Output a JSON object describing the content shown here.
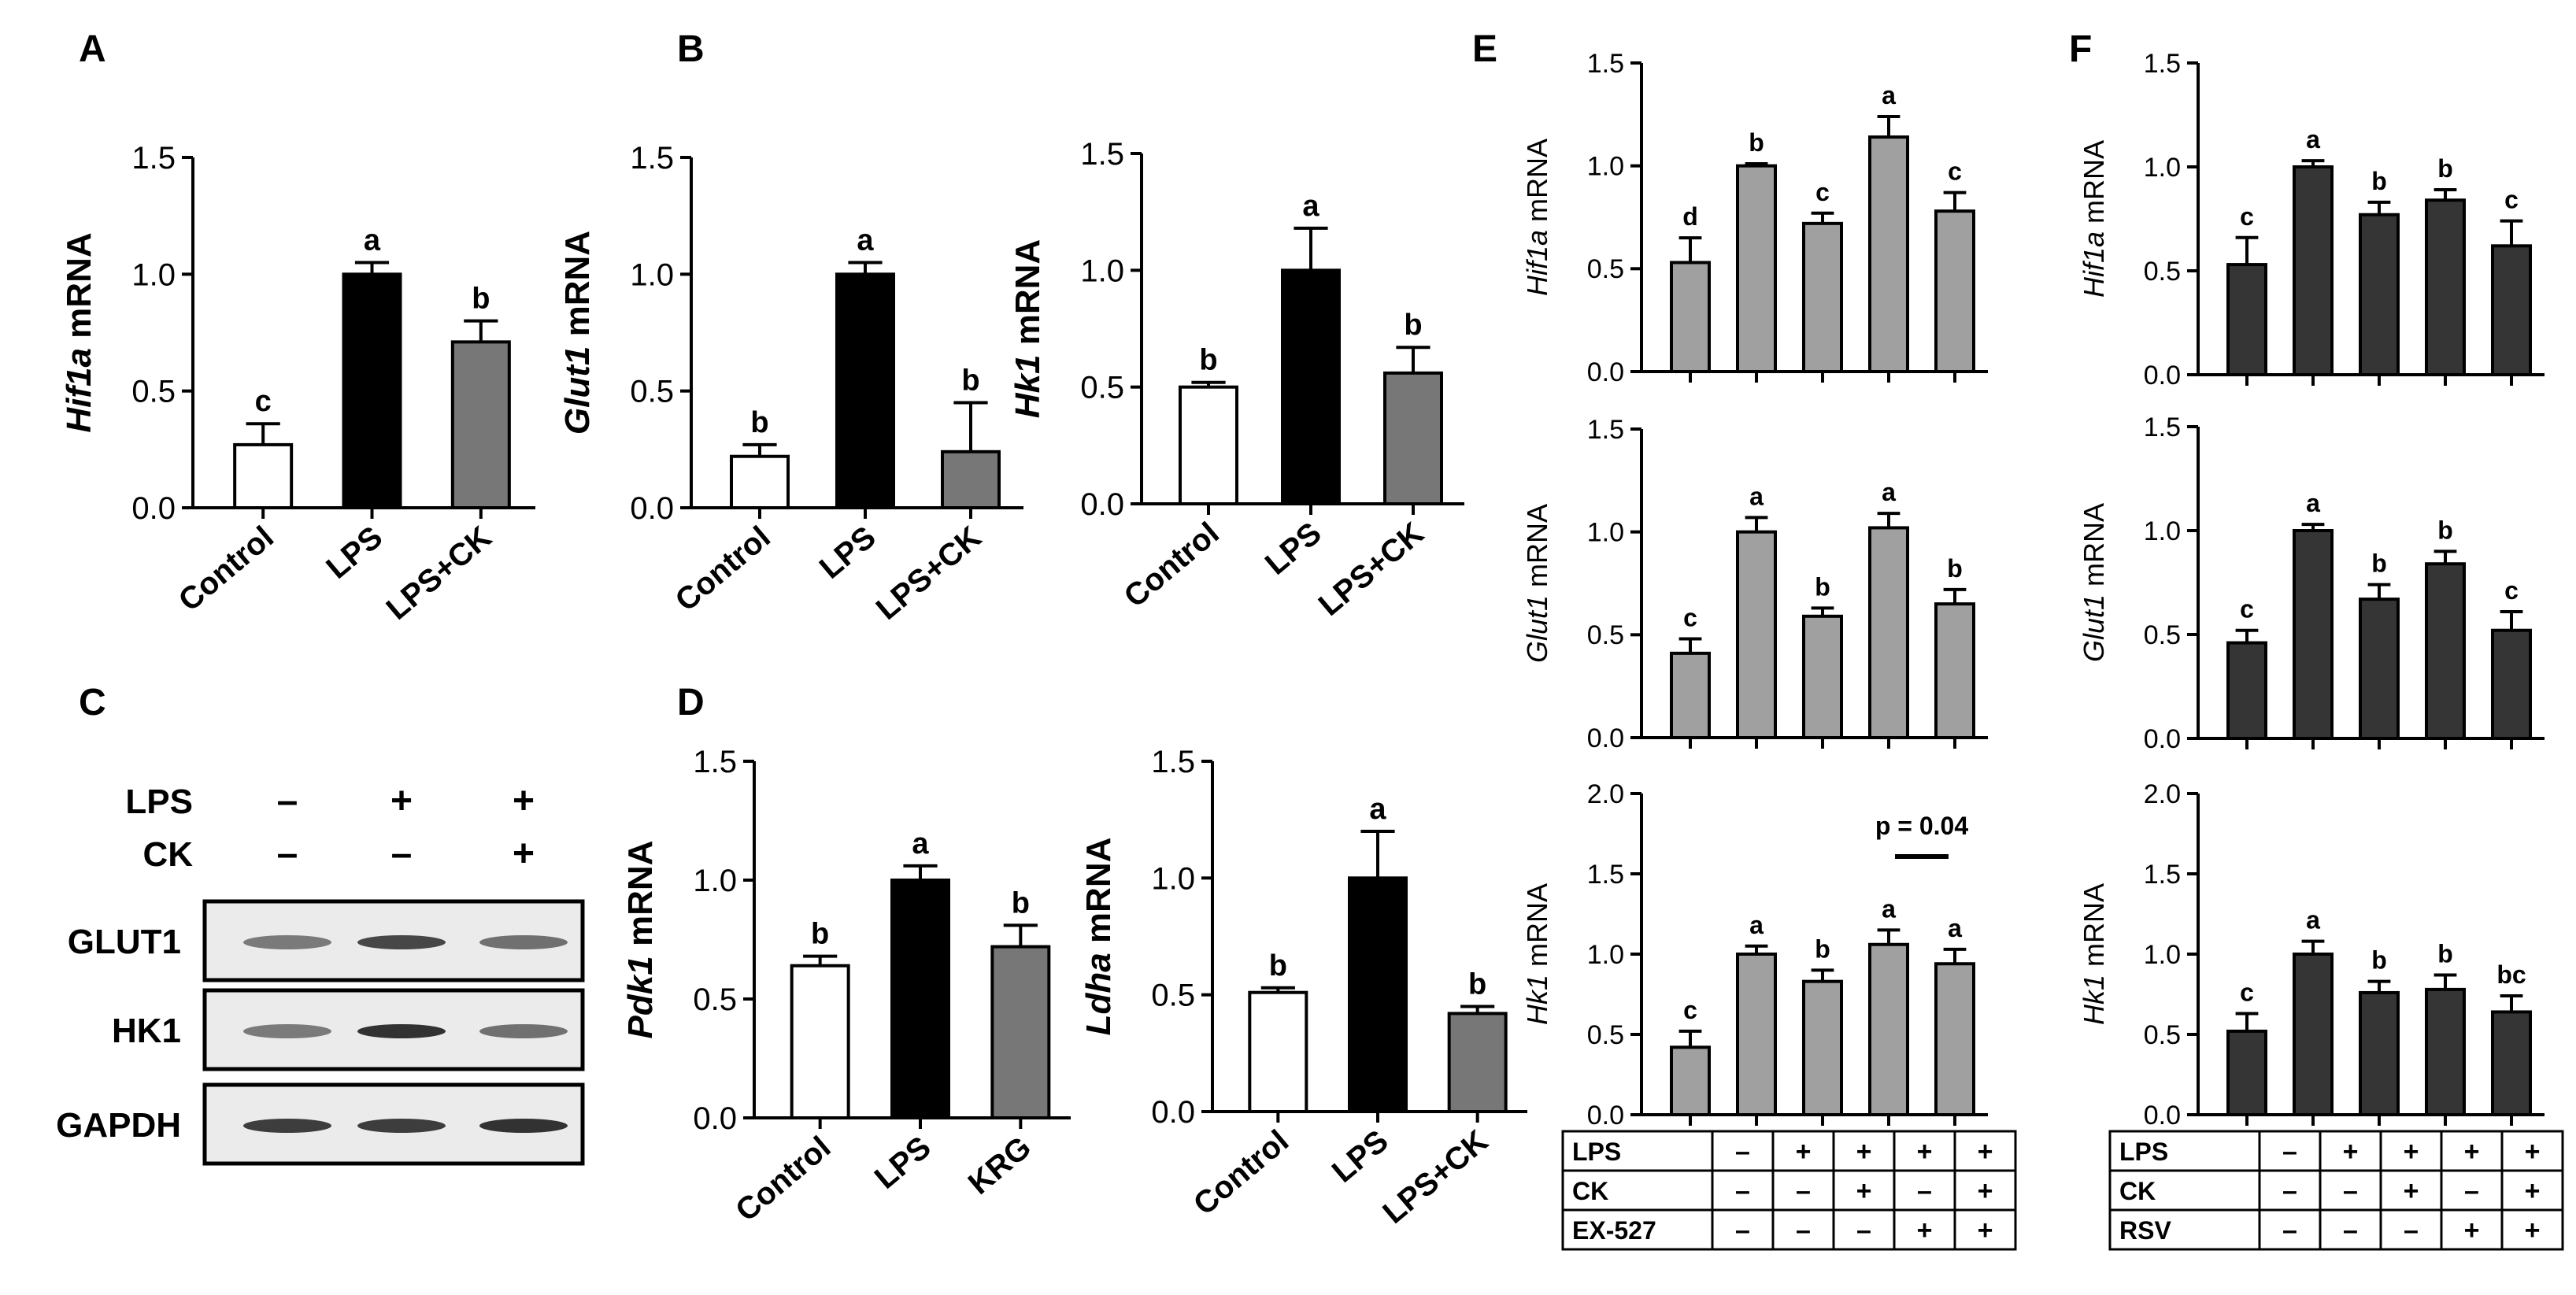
{
  "colors": {
    "white": "#ffffff",
    "black": "#000000",
    "dark_gray": "#777777",
    "light_gray": "#a0a0a0",
    "charcoal": "#353535"
  },
  "panel_letters": {
    "A": "A",
    "B": "B",
    "C": "C",
    "D": "D",
    "E": "E",
    "F": "F"
  },
  "chart_data": [
    {
      "id": "A",
      "type": "bar",
      "ylabel_italic": "Hif1a",
      "ylabel_rest": " mRNA",
      "ylim": [
        0,
        1.5
      ],
      "yticks": [
        "0.0",
        "0.5",
        "1.0",
        "1.5"
      ],
      "categories": [
        "Control",
        "LPS",
        "LPS+CK"
      ],
      "values": [
        0.27,
        1.0,
        0.71
      ],
      "errors": [
        0.09,
        0.05,
        0.09
      ],
      "letters": [
        "c",
        "a",
        "b"
      ],
      "fills": [
        "white",
        "black",
        "dark_gray"
      ]
    },
    {
      "id": "B1",
      "type": "bar",
      "ylabel_italic": "Glut1",
      "ylabel_rest": " mRNA",
      "ylim": [
        0,
        1.5
      ],
      "yticks": [
        "0.0",
        "0.5",
        "1.0",
        "1.5"
      ],
      "categories": [
        "Control",
        "LPS",
        "LPS+CK"
      ],
      "values": [
        0.22,
        1.0,
        0.24
      ],
      "errors": [
        0.05,
        0.05,
        0.21
      ],
      "letters": [
        "b",
        "a",
        "b"
      ],
      "fills": [
        "white",
        "black",
        "dark_gray"
      ]
    },
    {
      "id": "B2",
      "type": "bar",
      "ylabel_italic": "Hk1",
      "ylabel_rest": " mRNA",
      "ylim": [
        0,
        1.5
      ],
      "yticks": [
        "0.0",
        "0.5",
        "1.0",
        "1.5"
      ],
      "categories": [
        "Control",
        "LPS",
        "LPS+CK"
      ],
      "values": [
        0.5,
        1.0,
        0.56
      ],
      "errors": [
        0.02,
        0.18,
        0.11
      ],
      "letters": [
        "b",
        "a",
        "b"
      ],
      "fills": [
        "white",
        "black",
        "dark_gray"
      ]
    },
    {
      "id": "D1",
      "type": "bar",
      "ylabel_italic": "Pdk1",
      "ylabel_rest": " mRNA",
      "ylim": [
        0,
        1.5
      ],
      "yticks": [
        "0.0",
        "0.5",
        "1.0",
        "1.5"
      ],
      "categories": [
        "Control",
        "LPS",
        "KRG"
      ],
      "values": [
        0.64,
        1.0,
        0.72
      ],
      "errors": [
        0.04,
        0.06,
        0.09
      ],
      "letters": [
        "b",
        "a",
        "b"
      ],
      "fills": [
        "white",
        "black",
        "dark_gray"
      ]
    },
    {
      "id": "D2",
      "type": "bar",
      "ylabel_italic": "Ldha",
      "ylabel_rest": " mRNA",
      "ylim": [
        0,
        1.5
      ],
      "yticks": [
        "0.0",
        "0.5",
        "1.0",
        "1.5"
      ],
      "categories": [
        "Control",
        "LPS",
        "LPS+CK"
      ],
      "values": [
        0.51,
        1.0,
        0.42
      ],
      "errors": [
        0.02,
        0.2,
        0.03
      ],
      "letters": [
        "b",
        "a",
        "b"
      ],
      "fills": [
        "white",
        "black",
        "dark_gray"
      ]
    },
    {
      "id": "E1",
      "type": "bar",
      "ylabel_italic": "Hif1a",
      "ylabel_rest": " mRNA",
      "ylim": [
        0,
        1.5
      ],
      "yticks": [
        "0.0",
        "0.5",
        "1.0",
        "1.5"
      ],
      "values": [
        0.53,
        1.0,
        0.72,
        1.14,
        0.78
      ],
      "errors": [
        0.12,
        0.01,
        0.05,
        0.1,
        0.09
      ],
      "letters": [
        "d",
        "b",
        "c",
        "a",
        "c"
      ],
      "fill": "light_gray"
    },
    {
      "id": "E2",
      "type": "bar",
      "ylabel_italic": "Glut1",
      "ylabel_rest": " mRNA",
      "ylim": [
        0,
        1.5
      ],
      "yticks": [
        "0.0",
        "0.5",
        "1.0",
        "1.5"
      ],
      "values": [
        0.41,
        1.0,
        0.59,
        1.02,
        0.65
      ],
      "errors": [
        0.07,
        0.07,
        0.04,
        0.07,
        0.07
      ],
      "letters": [
        "c",
        "a",
        "b",
        "a",
        "b"
      ],
      "fill": "light_gray"
    },
    {
      "id": "E3",
      "type": "bar",
      "ylabel_italic": "Hk1",
      "ylabel_rest": " mRNA",
      "ylim": [
        0,
        2.0
      ],
      "yticks": [
        "0.0",
        "0.5",
        "1.0",
        "1.5",
        "2.0"
      ],
      "values": [
        0.42,
        1.0,
        0.83,
        1.06,
        0.94
      ],
      "errors": [
        0.1,
        0.05,
        0.07,
        0.09,
        0.09
      ],
      "letters": [
        "c",
        "a",
        "b",
        "a",
        "a"
      ],
      "fill": "light_gray",
      "annotation": "p = 0.04"
    },
    {
      "id": "F1",
      "type": "bar",
      "ylabel_italic": "Hif1a",
      "ylabel_rest": " mRNA",
      "ylim": [
        0,
        1.5
      ],
      "yticks": [
        "0.0",
        "0.5",
        "1.0",
        "1.5"
      ],
      "values": [
        0.53,
        1.0,
        0.77,
        0.84,
        0.62
      ],
      "errors": [
        0.13,
        0.03,
        0.06,
        0.05,
        0.12
      ],
      "letters": [
        "c",
        "a",
        "b",
        "b",
        "c"
      ],
      "fill": "charcoal"
    },
    {
      "id": "F2",
      "type": "bar",
      "ylabel_italic": "Glut1",
      "ylabel_rest": " mRNA",
      "ylim": [
        0,
        1.5
      ],
      "yticks": [
        "0.0",
        "0.5",
        "1.0",
        "1.5"
      ],
      "values": [
        0.46,
        1.0,
        0.67,
        0.84,
        0.52
      ],
      "errors": [
        0.06,
        0.03,
        0.07,
        0.06,
        0.09
      ],
      "letters": [
        "c",
        "a",
        "b",
        "b",
        "c"
      ],
      "fill": "charcoal"
    },
    {
      "id": "F3",
      "type": "bar",
      "ylabel_italic": "Hk1",
      "ylabel_rest": " mRNA",
      "ylim": [
        0,
        2.0
      ],
      "yticks": [
        "0.0",
        "0.5",
        "1.0",
        "1.5",
        "2.0"
      ],
      "values": [
        0.52,
        1.0,
        0.76,
        0.78,
        0.64
      ],
      "errors": [
        0.11,
        0.08,
        0.07,
        0.09,
        0.1
      ],
      "letters": [
        "c",
        "a",
        "b",
        "b",
        "bc"
      ],
      "fill": "charcoal"
    }
  ],
  "treatment_tables": {
    "E": {
      "rows": [
        {
          "label": "LPS",
          "values": [
            "–",
            "+",
            "+",
            "+",
            "+"
          ]
        },
        {
          "label": "CK",
          "values": [
            "–",
            "–",
            "+",
            "–",
            "+"
          ]
        },
        {
          "label": "EX-527",
          "values": [
            "–",
            "–",
            "–",
            "+",
            "+"
          ]
        }
      ]
    },
    "F": {
      "rows": [
        {
          "label": "LPS",
          "values": [
            "–",
            "+",
            "+",
            "+",
            "+"
          ]
        },
        {
          "label": "CK",
          "values": [
            "–",
            "–",
            "+",
            "–",
            "+"
          ]
        },
        {
          "label": "RSV",
          "values": [
            "–",
            "–",
            "–",
            "+",
            "+"
          ]
        }
      ]
    }
  },
  "western_blot": {
    "lanes": [
      {
        "lps": "–",
        "ck": "–"
      },
      {
        "lps": "+",
        "ck": "–"
      },
      {
        "lps": "+",
        "ck": "+"
      }
    ],
    "row_labels": {
      "lps": "LPS",
      "ck": "CK"
    },
    "blots": [
      "GLUT1",
      "HK1",
      "GAPDH"
    ]
  }
}
